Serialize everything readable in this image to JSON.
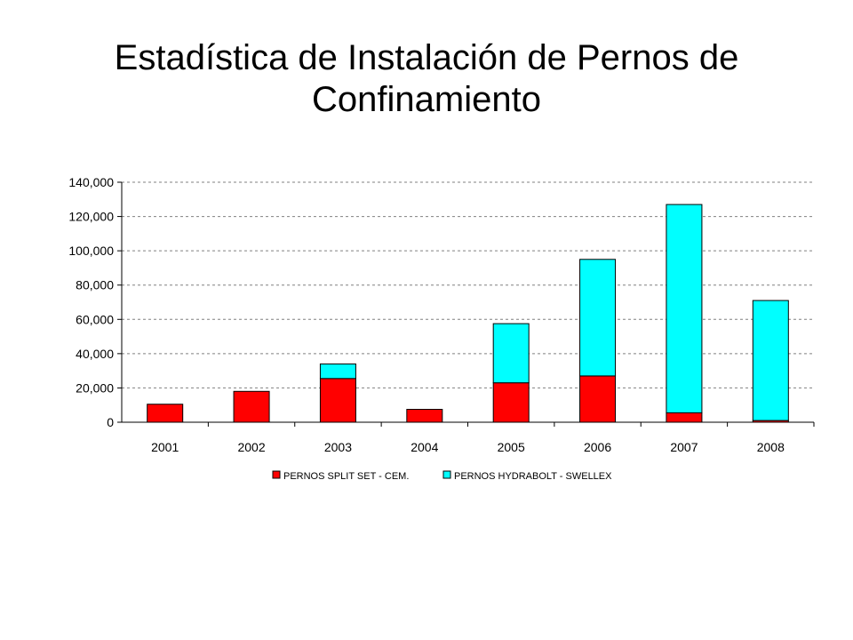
{
  "chart_data": {
    "type": "bar",
    "stacked": true,
    "title": "Estadística de Instalación de Pernos de Confinamiento",
    "categories": [
      "2001",
      "2002",
      "2003",
      "2004",
      "2005",
      "2006",
      "2007",
      "2008"
    ],
    "series": [
      {
        "name": "PERNOS SPLIT SET - CEM.",
        "color": "#ff0000",
        "values": [
          10500,
          18000,
          25500,
          7500,
          23000,
          27000,
          5500,
          1000
        ]
      },
      {
        "name": "PERNOS HYDRABOLT - SWELLEX",
        "color": "#00ffff",
        "values": [
          0,
          0,
          8500,
          0,
          34500,
          68000,
          121500,
          70000
        ]
      }
    ],
    "ylim": [
      0,
      140000
    ],
    "yticks": [
      0,
      20000,
      40000,
      60000,
      80000,
      100000,
      120000,
      140000
    ],
    "ytick_labels": [
      "0",
      "20,000",
      "40,000",
      "60,000",
      "80,000",
      "100,000",
      "120,000",
      "140,000"
    ],
    "grid": true,
    "legend_position": "bottom"
  }
}
